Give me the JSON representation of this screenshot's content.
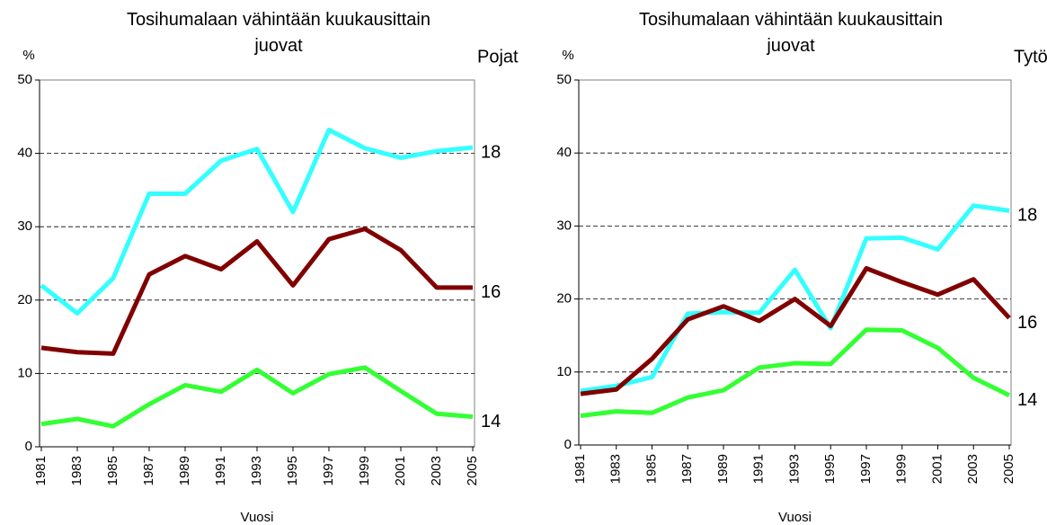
{
  "chart_data": [
    {
      "type": "line",
      "title": "Tosihumalaan vähintään kuukausittain juovat",
      "group": "Pojat",
      "ylabel": "%",
      "xlabel": "Vuosi",
      "categories": [
        "1981",
        "1983",
        "1985",
        "1987",
        "1989",
        "1991",
        "1993",
        "1995",
        "1997",
        "1999",
        "2001",
        "2003",
        "2005"
      ],
      "ylim": [
        0,
        50
      ],
      "yticks": [
        0,
        10,
        20,
        30,
        40,
        50
      ],
      "grid": true,
      "series": [
        {
          "name": "18",
          "color": "#33ffff",
          "values": [
            22,
            18.2,
            23,
            34.5,
            34.5,
            39,
            40.6,
            32,
            43.2,
            40.7,
            39.4,
            40.3,
            40.8
          ]
        },
        {
          "name": "16",
          "color": "#800000",
          "values": [
            13.5,
            12.9,
            12.7,
            23.5,
            26,
            24.2,
            28,
            22,
            28.3,
            29.7,
            26.8,
            21.7,
            21.7
          ]
        },
        {
          "name": "14",
          "color": "#33ff33",
          "values": [
            3.1,
            3.8,
            2.8,
            5.8,
            8.4,
            7.5,
            10.5,
            7.3,
            9.9,
            10.8,
            7.6,
            4.5,
            4.1
          ]
        }
      ]
    },
    {
      "type": "line",
      "title": "Tosihumalaan vähintään kuukausittain juovat",
      "group": "Tytöt",
      "ylabel": "%",
      "xlabel": "Vuosi",
      "categories": [
        "1981",
        "1983",
        "1985",
        "1987",
        "1989",
        "1991",
        "1993",
        "1995",
        "1997",
        "1999",
        "2001",
        "2003",
        "2005"
      ],
      "ylim": [
        0,
        50
      ],
      "yticks": [
        0,
        10,
        20,
        30,
        40,
        50
      ],
      "grid": true,
      "series": [
        {
          "name": "18",
          "color": "#33ffff",
          "values": [
            7.4,
            8.1,
            9.3,
            18,
            18.2,
            18.1,
            24,
            16,
            28.3,
            28.4,
            26.8,
            32.8,
            32.1
          ]
        },
        {
          "name": "16",
          "color": "#800000",
          "values": [
            7,
            7.6,
            11.8,
            17.2,
            19,
            17,
            20,
            16.3,
            24.2,
            22.3,
            20.6,
            22.7,
            17.4
          ]
        },
        {
          "name": "14",
          "color": "#33ff33",
          "values": [
            4,
            4.6,
            4.4,
            6.5,
            7.5,
            10.6,
            11.2,
            11.1,
            15.8,
            15.7,
            13.3,
            9.2,
            6.8
          ]
        }
      ]
    }
  ]
}
